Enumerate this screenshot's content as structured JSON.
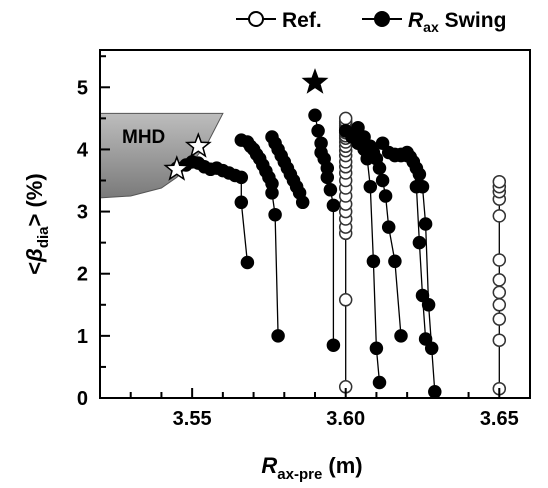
{
  "chart_data": {
    "type": "scatter",
    "title": "",
    "xlabel": {
      "main": "R",
      "sub": "ax-pre",
      "unit": " (m)"
    },
    "ylabel": {
      "prefix": "<",
      "symbol": "β",
      "sub": "dia",
      "suffix": "> (%)"
    },
    "xlim": [
      3.52,
      3.66
    ],
    "ylim": [
      0,
      5.6
    ],
    "x_ticks": [
      "3.55",
      "3.60",
      "3.65"
    ],
    "x_tick_values": [
      3.55,
      3.6,
      3.65
    ],
    "y_ticks": [
      "0",
      "1",
      "2",
      "3",
      "4",
      "5"
    ],
    "y_tick_values": [
      0,
      1,
      2,
      3,
      4,
      5
    ],
    "grid": false,
    "legend_position": "top-right",
    "legend": {
      "ref": {
        "label": "Ref."
      },
      "swing": {
        "label_main": "R",
        "label_sub": "ax",
        "label_rest": " Swing"
      }
    },
    "region_label": "MHD",
    "mhd_boundary": [
      [
        3.52,
        3.22
      ],
      [
        3.53,
        3.25
      ],
      [
        3.54,
        3.38
      ],
      [
        3.545,
        3.55
      ],
      [
        3.55,
        3.8
      ],
      [
        3.555,
        4.1
      ],
      [
        3.56,
        4.58
      ]
    ],
    "series": [
      {
        "name": "Ref.",
        "marker": "open-circle",
        "groups": [
          {
            "x": [
              3.6,
              3.6,
              3.6,
              3.6,
              3.6,
              3.6,
              3.6,
              3.6,
              3.6,
              3.6,
              3.6,
              3.6,
              3.6,
              3.6,
              3.6,
              3.6,
              3.6,
              3.6,
              3.6,
              3.6,
              3.6,
              3.6,
              3.6,
              3.6,
              3.6,
              3.6
            ],
            "y": [
              0.18,
              1.58,
              2.65,
              2.75,
              2.88,
              3.0,
              3.12,
              3.25,
              3.38,
              3.5,
              3.62,
              3.72,
              3.8,
              3.9,
              3.98,
              4.05,
              4.12,
              4.18,
              4.22,
              4.27,
              4.3,
              4.35,
              4.38,
              4.42,
              4.45,
              4.5
            ]
          },
          {
            "x": [
              3.65,
              3.65,
              3.65,
              3.65,
              3.65,
              3.65,
              3.65,
              3.65,
              3.65,
              3.65,
              3.65,
              3.65
            ],
            "y": [
              0.15,
              0.93,
              1.27,
              1.5,
              1.7,
              1.9,
              2.22,
              2.93,
              3.2,
              3.32,
              3.4,
              3.48
            ]
          }
        ]
      },
      {
        "name": "Rax Swing",
        "marker": "filled-circle",
        "groups": [
          {
            "x": [
              3.545,
              3.548,
              3.55,
              3.552,
              3.554,
              3.556,
              3.558,
              3.56,
              3.562,
              3.564,
              3.566,
              3.566,
              3.568
            ],
            "y": [
              3.7,
              3.75,
              3.8,
              3.78,
              3.72,
              3.68,
              3.7,
              3.66,
              3.62,
              3.58,
              3.55,
              3.15,
              2.18
            ]
          },
          {
            "x": [
              3.566,
              3.568,
              3.569,
              3.57,
              3.571,
              3.572,
              3.573,
              3.574,
              3.575,
              3.576,
              3.576,
              3.577,
              3.578
            ],
            "y": [
              4.15,
              4.12,
              4.05,
              4.0,
              3.92,
              3.85,
              3.75,
              3.65,
              3.55,
              3.45,
              3.3,
              2.95,
              1.0
            ]
          },
          {
            "x": [
              3.576,
              3.577,
              3.578,
              3.579,
              3.58,
              3.581,
              3.582,
              3.583,
              3.584,
              3.585,
              3.586
            ],
            "y": [
              4.2,
              4.1,
              4.0,
              3.9,
              3.8,
              3.7,
              3.6,
              3.5,
              3.4,
              3.3,
              3.15
            ]
          },
          {
            "x": [
              3.59,
              3.591,
              3.592,
              3.592,
              3.593,
              3.594,
              3.594,
              3.595,
              3.596,
              3.596
            ],
            "y": [
              4.55,
              4.3,
              4.1,
              3.95,
              3.85,
              3.7,
              3.55,
              3.35,
              3.1,
              0.85
            ]
          },
          {
            "x": [
              3.6,
              3.602,
              3.604,
              3.606,
              3.607,
              3.608,
              3.609,
              3.61,
              3.611
            ],
            "y": [
              4.3,
              4.2,
              4.1,
              4.0,
              3.85,
              3.4,
              2.2,
              0.8,
              0.25
            ]
          },
          {
            "x": [
              3.604,
              3.606,
              3.608,
              3.609,
              3.61,
              3.611,
              3.612,
              3.613,
              3.614,
              3.616,
              3.618
            ],
            "y": [
              4.35,
              4.2,
              4.05,
              3.95,
              3.85,
              3.7,
              3.5,
              3.25,
              2.75,
              2.2,
              1.0
            ]
          },
          {
            "x": [
              3.612,
              3.614,
              3.616,
              3.618,
              3.62,
              3.621,
              3.622,
              3.623,
              3.624,
              3.625,
              3.626
            ],
            "y": [
              4.1,
              3.95,
              3.92,
              3.9,
              3.95,
              3.88,
              3.8,
              3.4,
              2.5,
              1.65,
              0.95
            ]
          },
          {
            "x": [
              3.616,
              3.618,
              3.62,
              3.622,
              3.623,
              3.624,
              3.625,
              3.626,
              3.627,
              3.628,
              3.629
            ],
            "y": [
              3.9,
              3.92,
              3.9,
              3.8,
              3.7,
              3.6,
              3.4,
              2.8,
              1.5,
              0.8,
              0.1
            ]
          }
        ]
      }
    ],
    "stars": [
      {
        "x": 3.59,
        "y": 5.08,
        "style": "filled"
      },
      {
        "x": 3.545,
        "y": 3.68,
        "style": "open"
      },
      {
        "x": 3.552,
        "y": 4.05,
        "style": "open"
      }
    ]
  }
}
